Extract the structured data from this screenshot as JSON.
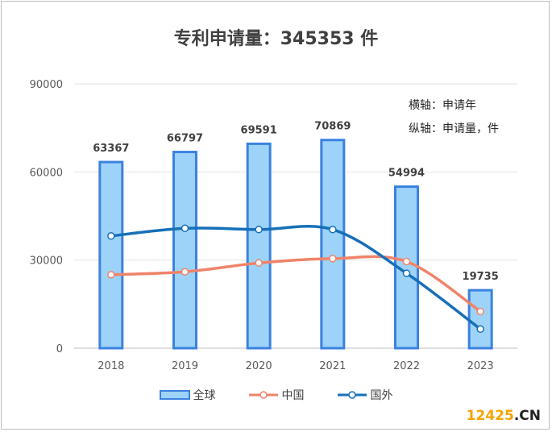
{
  "chart_data": {
    "type": "bar",
    "title": "专利申请量：345353 件",
    "annotations": [
      "横轴：申请年",
      "纵轴：申请量，件"
    ],
    "categories": [
      "2018",
      "2019",
      "2020",
      "2021",
      "2022",
      "2023"
    ],
    "ylim": [
      0,
      90000
    ],
    "yticks": [
      "0",
      "30000",
      "60000",
      "90000"
    ],
    "grid": true,
    "legend_position": "bottom",
    "series": [
      {
        "name": "全球",
        "type": "bar",
        "values": [
          63367,
          66797,
          69591,
          70869,
          54994,
          19735
        ],
        "labels": [
          "63367",
          "66797",
          "69591",
          "70869",
          "54994",
          "19735"
        ],
        "color": "#9dd3f8",
        "border": "#3b82e0"
      },
      {
        "name": "中国",
        "type": "line",
        "values": [
          25000,
          26000,
          29000,
          30500,
          29500,
          12500
        ],
        "color": "#f0836a"
      },
      {
        "name": "国外",
        "type": "line",
        "values": [
          38200,
          40800,
          40400,
          40400,
          25500,
          6500
        ],
        "color": "#1670b8"
      }
    ]
  },
  "watermark": {
    "part1": "12425",
    "part2": ".CN"
  }
}
